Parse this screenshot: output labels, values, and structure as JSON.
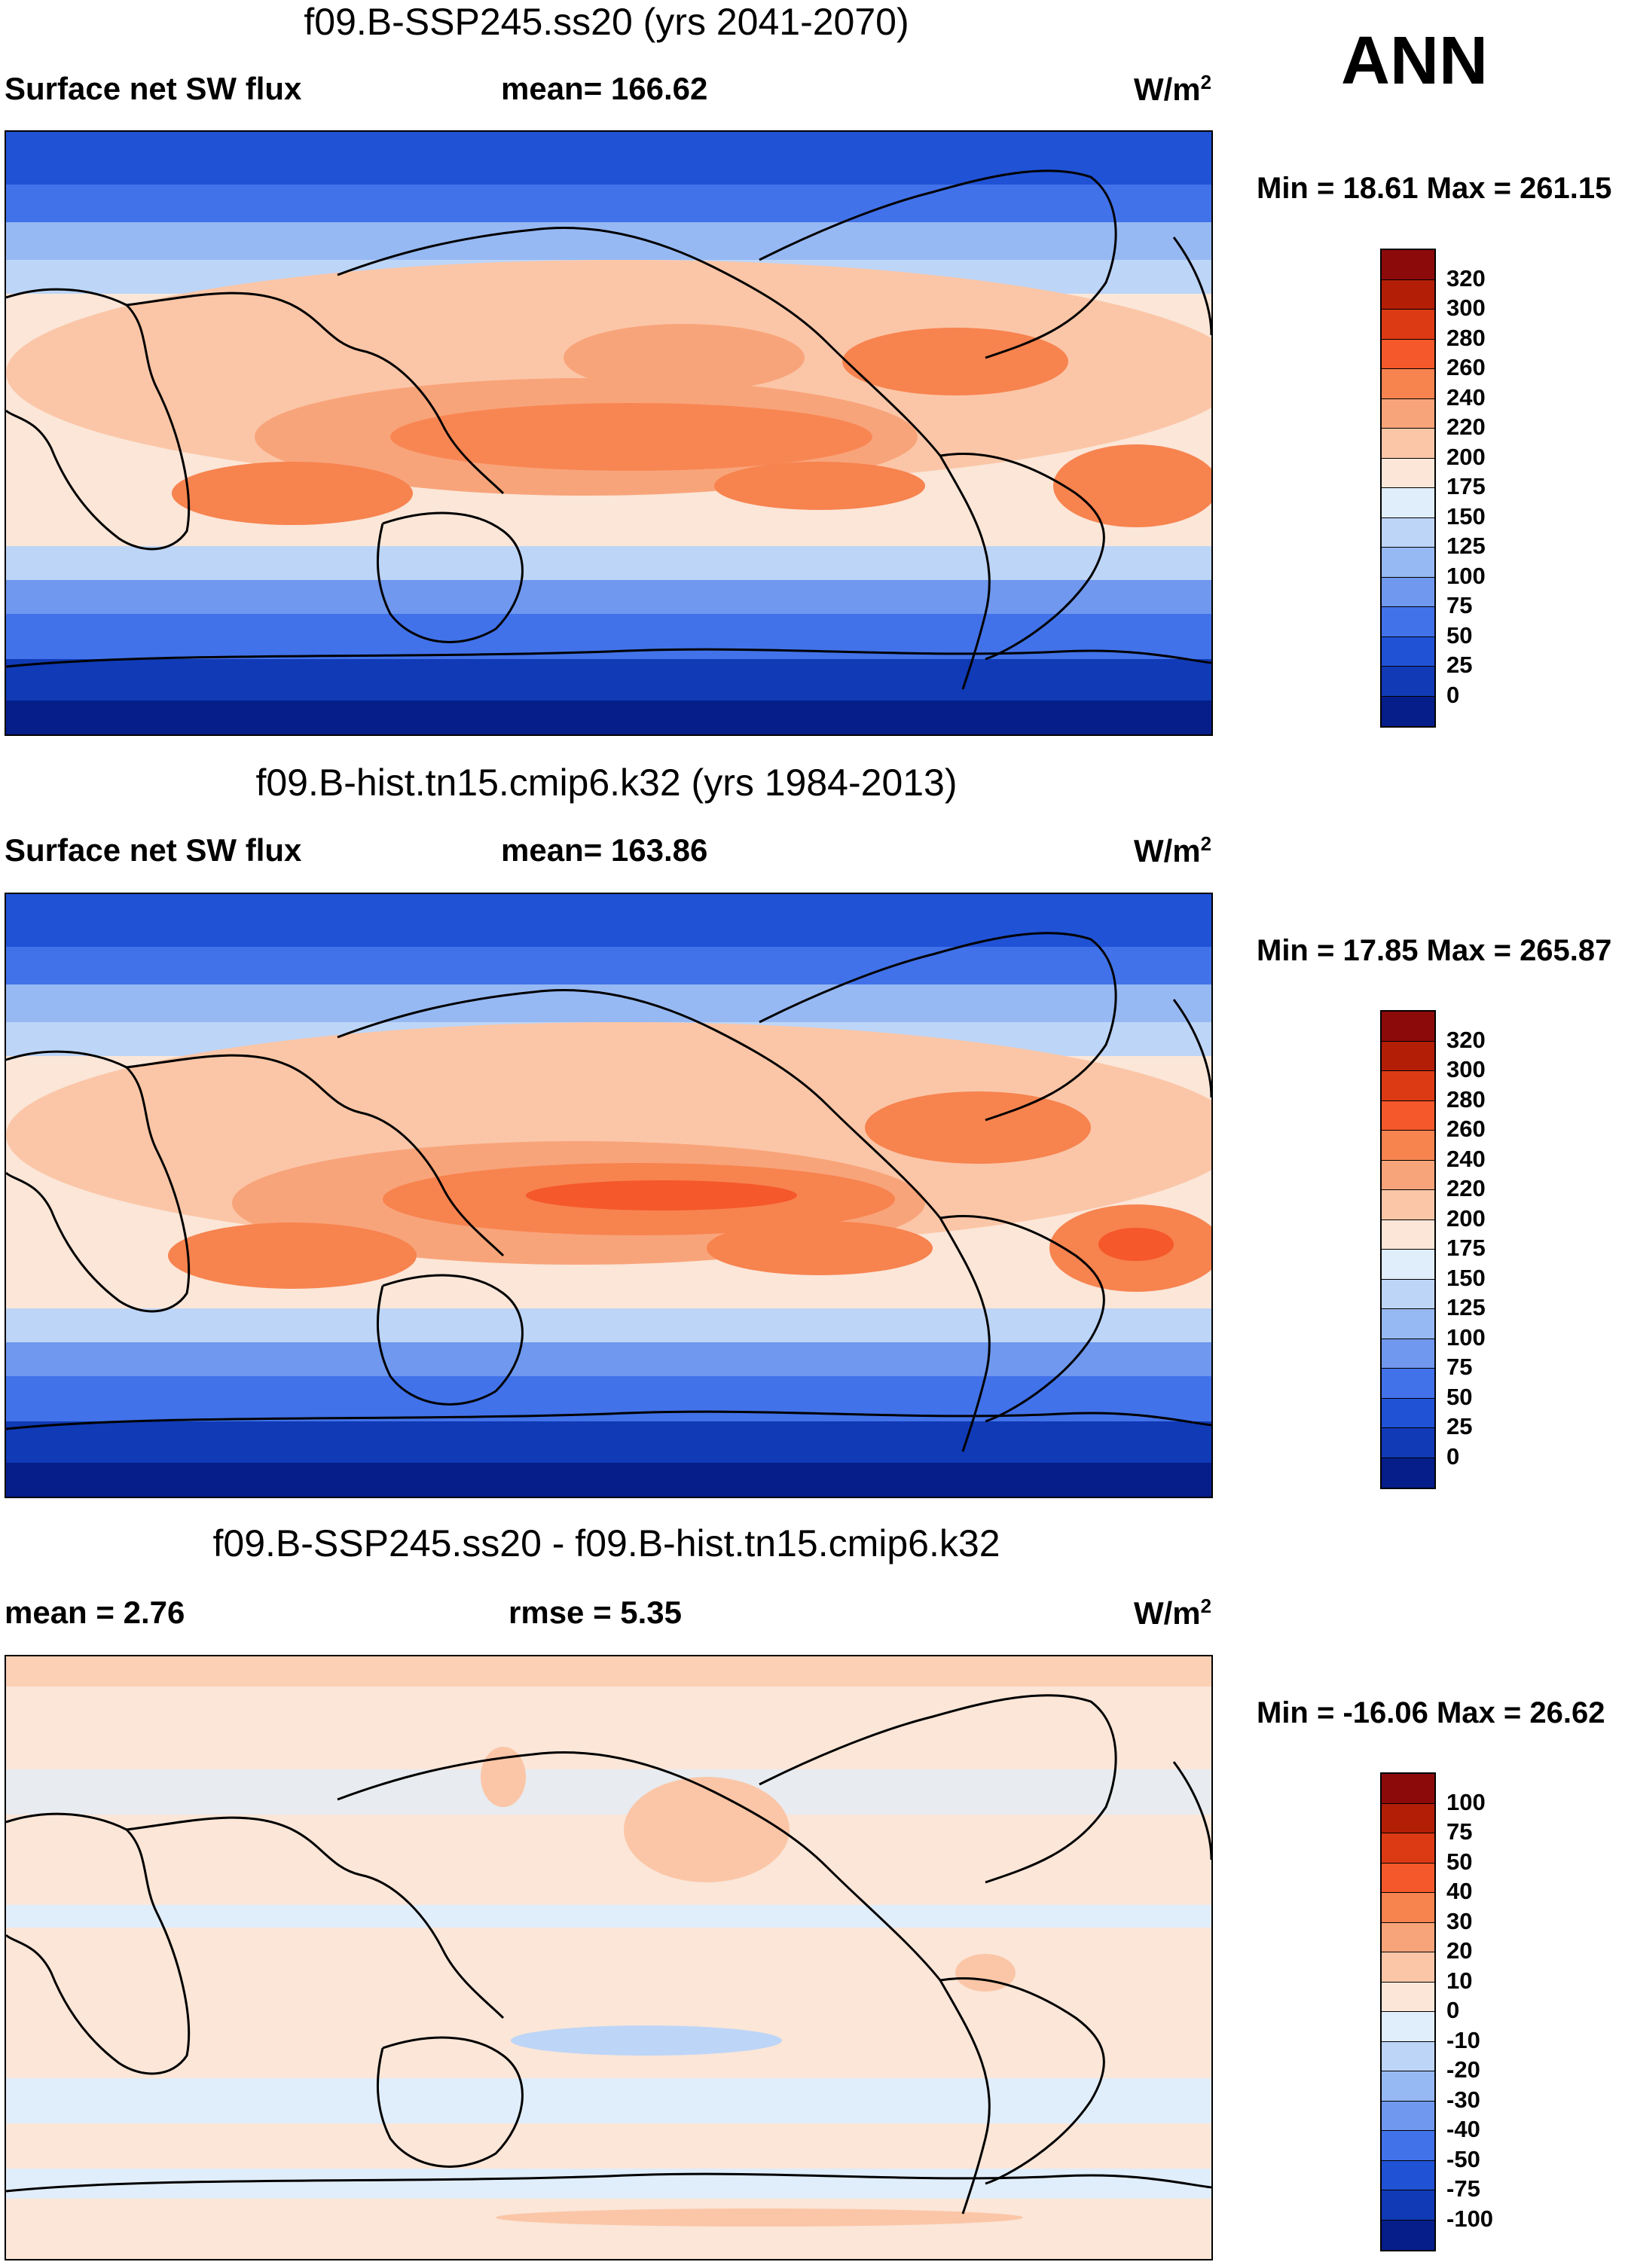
{
  "season": "ANN",
  "panels": [
    {
      "title": "f09.B-SSP245.ss20 (yrs 2041-2070)",
      "left_label": "Surface net SW flux",
      "center_label": "mean= 166.62",
      "units": "W/m",
      "units_exp": "2",
      "minmax": "Min =  18.61 Max = 261.15",
      "colorbar_labels": [
        "320",
        "300",
        "280",
        "260",
        "240",
        "220",
        "200",
        "175",
        "150",
        "125",
        "100",
        "75",
        "50",
        "25",
        "0"
      ],
      "colorbar_colors": [
        "#8c0a0a",
        "#b31e06",
        "#dc3a14",
        "#f5582a",
        "#f7834f",
        "#f8a47a",
        "#fbc6a7",
        "#fbe6d8",
        "#e0edfa",
        "#bdd5f7",
        "#97b9f3",
        "#6f98ee",
        "#4272ea",
        "#2052d6",
        "#103ab6",
        "#051e8a"
      ]
    },
    {
      "title": "f09.B-hist.tn15.cmip6.k32 (yrs 1984-2013)",
      "left_label": "Surface net SW flux",
      "center_label": "mean= 163.86",
      "units": "W/m",
      "units_exp": "2",
      "minmax": "Min =  17.85 Max = 265.87",
      "colorbar_labels": [
        "320",
        "300",
        "280",
        "260",
        "240",
        "220",
        "200",
        "175",
        "150",
        "125",
        "100",
        "75",
        "50",
        "25",
        "0"
      ],
      "colorbar_colors": [
        "#8c0a0a",
        "#b31e06",
        "#dc3a14",
        "#f5582a",
        "#f7834f",
        "#f8a47a",
        "#fbc6a7",
        "#fbe6d8",
        "#e0edfa",
        "#bdd5f7",
        "#97b9f3",
        "#6f98ee",
        "#4272ea",
        "#2052d6",
        "#103ab6",
        "#051e8a"
      ]
    },
    {
      "title": "f09.B-SSP245.ss20 - f09.B-hist.tn15.cmip6.k32",
      "left_label": "mean =   2.76",
      "center_label": "rmse =   5.35",
      "units": "W/m",
      "units_exp": "2",
      "minmax": "Min = -16.06 Max =  26.62",
      "colorbar_labels": [
        "100",
        "75",
        "50",
        "40",
        "30",
        "20",
        "10",
        "0",
        "-10",
        "-20",
        "-30",
        "-40",
        "-50",
        "-75",
        "-100"
      ],
      "colorbar_colors": [
        "#8c0a0a",
        "#b31e06",
        "#dc3a14",
        "#f5582a",
        "#f7834f",
        "#f8a47a",
        "#fbc6a7",
        "#fbe6d8",
        "#e0edfa",
        "#bdd5f7",
        "#97b9f3",
        "#6f98ee",
        "#4272ea",
        "#2052d6",
        "#103ab6",
        "#051e8a"
      ]
    }
  ]
}
